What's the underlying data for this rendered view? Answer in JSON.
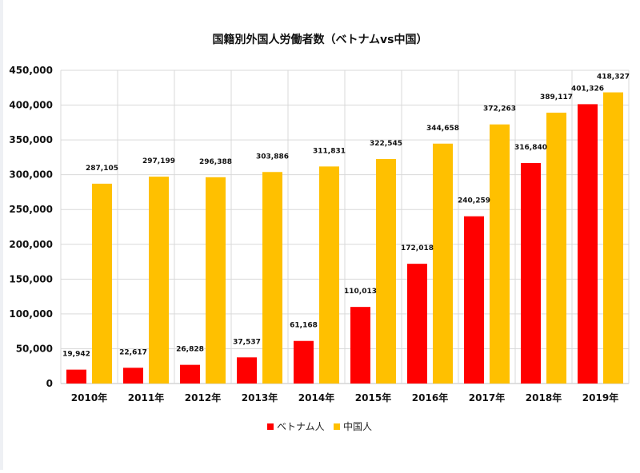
{
  "chart_data": {
    "type": "bar",
    "title": "国籍別外国人労働者数（ベトナムvs中国）",
    "categories": [
      "2010年",
      "2011年",
      "2012年",
      "2013年",
      "2014年",
      "2015年",
      "2016年",
      "2017年",
      "2018年",
      "2019年"
    ],
    "series": [
      {
        "name": "ベトナム人",
        "color": "#ff0000",
        "values": [
          19942,
          22617,
          26828,
          37537,
          61168,
          110013,
          172018,
          240259,
          316840,
          401326
        ],
        "labels": [
          "19,942",
          "22,617",
          "26,828",
          "37,537",
          "61,168",
          "110,013",
          "172,018",
          "240,259",
          "316,840",
          "401,326"
        ]
      },
      {
        "name": "中国人",
        "color": "#ffc000",
        "values": [
          287105,
          297199,
          296388,
          303886,
          311831,
          322545,
          344658,
          372263,
          389117,
          418327
        ],
        "labels": [
          "287,105",
          "297,199",
          "296,388",
          "303,886",
          "311,831",
          "322,545",
          "344,658",
          "372,263",
          "389,117",
          "418,327"
        ]
      }
    ],
    "ylim": [
      0,
      450000
    ],
    "yticks": [
      0,
      50000,
      100000,
      150000,
      200000,
      250000,
      300000,
      350000,
      400000,
      450000
    ],
    "ytick_labels": [
      "0",
      "50,000",
      "100,000",
      "150,000",
      "200,000",
      "250,000",
      "300,000",
      "350,000",
      "400,000",
      "450,000"
    ],
    "grid": "on",
    "legend_position": "bottom"
  }
}
